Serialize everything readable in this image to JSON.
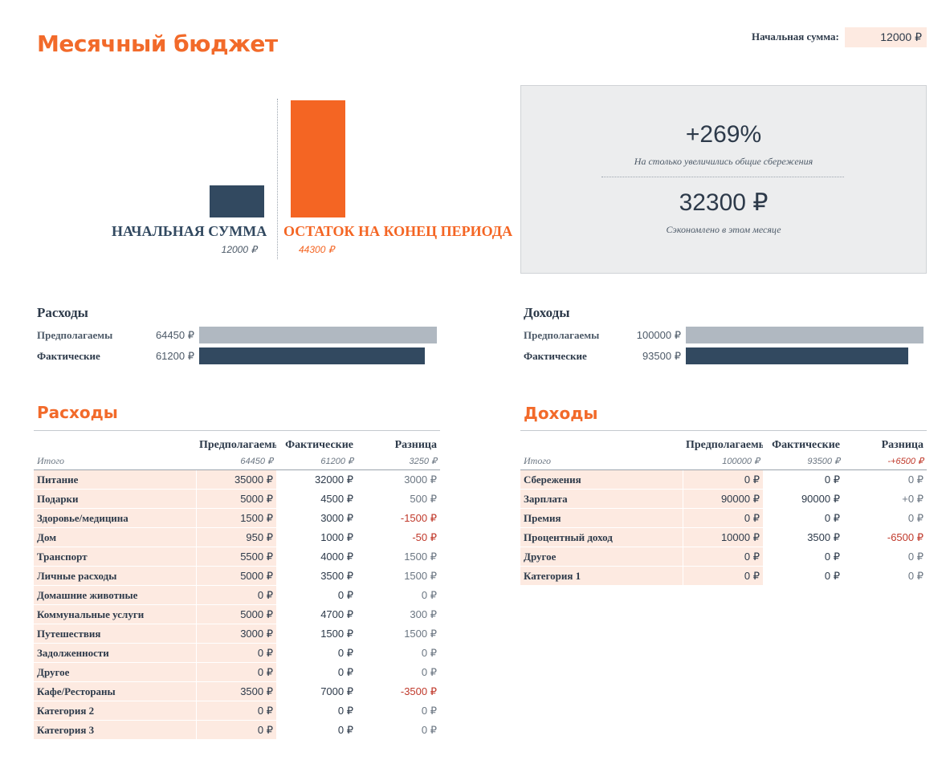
{
  "title": "Месячный бюджет",
  "start_sum": {
    "label": "Начальная сумма:",
    "value": "12000 ₽"
  },
  "chart_data": {
    "type": "bar",
    "categories": [
      "НАЧАЛЬНАЯ СУММА",
      "ОСТАТОК НА КОНЕЦ ПЕРИОДА"
    ],
    "values": [
      12000,
      44300
    ],
    "value_labels": [
      "12000 ₽",
      "44300 ₽"
    ],
    "colors": [
      "#324960",
      "#f46523"
    ]
  },
  "summary": {
    "percent": "+269%",
    "percent_caption": "На столько увеличились общие сбережения",
    "saved": "32300 ₽",
    "saved_caption": "Сэкономлено в этом месяце"
  },
  "expense_compare": {
    "title": "Расходы",
    "planned_label": "Предполагаемы",
    "planned_value": "64450 ₽",
    "planned_ratio": 1.0,
    "actual_label": "Фактические",
    "actual_value": "61200 ₽",
    "actual_ratio": 0.9496
  },
  "income_compare": {
    "title": "Доходы",
    "planned_label": "Предполагаемы",
    "planned_value": "100000 ₽",
    "planned_ratio": 1.0,
    "actual_label": "Фактические",
    "actual_value": "93500 ₽",
    "actual_ratio": 0.935
  },
  "expenses": {
    "title": "Расходы",
    "headers": [
      "",
      "Предполагаемые",
      "Фактические",
      "Разница"
    ],
    "total": [
      "Итого",
      "64450 ₽",
      "61200 ₽",
      "3250 ₽"
    ],
    "rows": [
      [
        "Питание",
        "35000 ₽",
        "32000 ₽",
        "3000 ₽"
      ],
      [
        "Подарки",
        "5000 ₽",
        "4500 ₽",
        "500 ₽"
      ],
      [
        "Здоровье/медицина",
        "1500 ₽",
        "3000 ₽",
        "-1500 ₽"
      ],
      [
        "Дом",
        "950 ₽",
        "1000 ₽",
        "-50 ₽"
      ],
      [
        "Транспорт",
        "5500 ₽",
        "4000 ₽",
        "1500 ₽"
      ],
      [
        "Личные расходы",
        "5000 ₽",
        "3500 ₽",
        "1500 ₽"
      ],
      [
        "Домашние животные",
        "0 ₽",
        "0 ₽",
        "0 ₽"
      ],
      [
        "Коммунальные услуги",
        "5000 ₽",
        "4700 ₽",
        "300 ₽"
      ],
      [
        "Путешествия",
        "3000 ₽",
        "1500 ₽",
        "1500 ₽"
      ],
      [
        "Задолженности",
        "0 ₽",
        "0 ₽",
        "0 ₽"
      ],
      [
        "Другое",
        "0 ₽",
        "0 ₽",
        "0 ₽"
      ],
      [
        "Кафе/Рестораны",
        "3500 ₽",
        "7000 ₽",
        "-3500 ₽"
      ],
      [
        "Категория 2",
        "0 ₽",
        "0 ₽",
        "0 ₽"
      ],
      [
        "Категория 3",
        "0 ₽",
        "0 ₽",
        "0 ₽"
      ]
    ]
  },
  "incomes": {
    "title": "Доходы",
    "headers": [
      "",
      "Предполагаемые",
      "Фактические",
      "Разница"
    ],
    "total": [
      "Итого",
      "100000 ₽",
      "93500 ₽",
      "-+6500 ₽"
    ],
    "rows": [
      [
        "Сбережения",
        "0 ₽",
        "0 ₽",
        "0 ₽"
      ],
      [
        "Зарплата",
        "90000 ₽",
        "90000 ₽",
        "+0 ₽"
      ],
      [
        "Премия",
        "0 ₽",
        "0 ₽",
        "0 ₽"
      ],
      [
        "Процентный доход",
        "10000 ₽",
        "3500 ₽",
        "-6500 ₽"
      ],
      [
        "Другое",
        "0 ₽",
        "0 ₽",
        "0 ₽"
      ],
      [
        "Категория 1",
        "0 ₽",
        "0 ₽",
        "0 ₽"
      ]
    ]
  }
}
